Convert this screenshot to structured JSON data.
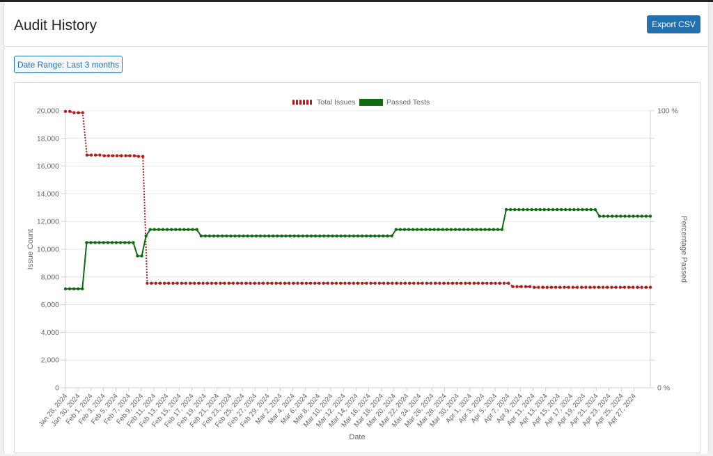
{
  "header": {
    "title": "Audit History",
    "export_label": "Export CSV"
  },
  "filters": {
    "date_range_label": "Date Range: Last 3 months"
  },
  "colors": {
    "primary_button": "#2271b1",
    "total_issues": "#b31b1b",
    "passed_tests": "#0f6b0f"
  },
  "chart_data": {
    "type": "line",
    "xlabel": "Date",
    "ylabel": "Issue Count",
    "y2label": "Percentage Passed",
    "ylim": [
      0,
      20000
    ],
    "y2lim": [
      0,
      100
    ],
    "y_ticks": [
      "0",
      "2,000",
      "4,000",
      "6,000",
      "8,000",
      "10,000",
      "12,000",
      "14,000",
      "16,000",
      "18,000",
      "20,000"
    ],
    "y2_ticks": [
      "0 %",
      "100 %"
    ],
    "legend_position": "top-center",
    "x_tick_labels": [
      "Jan 28, 2024",
      "Jan 30, 2024",
      "Feb 1, 2024",
      "Feb 3, 2024",
      "Feb 5, 2024",
      "Feb 7, 2024",
      "Feb 9, 2024",
      "Feb 11, 2024",
      "Feb 13, 2024",
      "Feb 15, 2024",
      "Feb 17, 2024",
      "Feb 19, 2024",
      "Feb 21, 2024",
      "Feb 23, 2024",
      "Feb 25, 2024",
      "Feb 27, 2024",
      "Feb 29, 2024",
      "Mar 2, 2024",
      "Mar 4, 2024",
      "Mar 6, 2024",
      "Mar 8, 2024",
      "Mar 10, 2024",
      "Mar 12, 2024",
      "Mar 14, 2024",
      "Mar 16, 2024",
      "Mar 18, 2024",
      "Mar 20, 2024",
      "Mar 22, 2024",
      "Mar 24, 2024",
      "Mar 26, 2024",
      "Mar 28, 2024",
      "Mar 30, 2024",
      "Apr 1, 2024",
      "Apr 3, 2024",
      "Apr 5, 2024",
      "Apr 7, 2024",
      "Apr 9, 2024",
      "Apr 11, 2024",
      "Apr 13, 2024",
      "Apr 15, 2024",
      "Apr 17, 2024",
      "Apr 19, 2024",
      "Apr 21, 2024",
      "Apr 23, 2024",
      "Apr 25, 2024",
      "Apr 27, 2024"
    ],
    "series": [
      {
        "name": "Total Issues",
        "axis": "left",
        "style": "dotted",
        "values": [
          19950,
          19950,
          19850,
          19850,
          19850,
          16800,
          16800,
          16800,
          16800,
          16750,
          16750,
          16750,
          16750,
          16750,
          16750,
          16750,
          16750,
          16700,
          16700,
          7550,
          7550,
          7550,
          7550,
          7550,
          7550,
          7550,
          7550,
          7550,
          7550,
          7550,
          7550,
          7550,
          7550,
          7550,
          7550,
          7550,
          7550,
          7550,
          7550,
          7550,
          7550,
          7550,
          7550,
          7550,
          7550,
          7550,
          7550,
          7550,
          7550,
          7550,
          7550,
          7550,
          7550,
          7550,
          7550,
          7550,
          7550,
          7550,
          7550,
          7550,
          7550,
          7550,
          7550,
          7550,
          7550,
          7550,
          7550,
          7550,
          7550,
          7550,
          7550,
          7550,
          7550,
          7550,
          7550,
          7550,
          7550,
          7550,
          7550,
          7550,
          7550,
          7550,
          7550,
          7550,
          7550,
          7550,
          7550,
          7550,
          7550,
          7550,
          7550,
          7550,
          7550,
          7550,
          7550,
          7550,
          7550,
          7550,
          7550,
          7550,
          7550,
          7550,
          7550,
          7550,
          7300,
          7300,
          7300,
          7300,
          7300,
          7250,
          7250,
          7250,
          7250,
          7250,
          7250,
          7250,
          7250,
          7250,
          7250,
          7250,
          7250,
          7250,
          7250,
          7250,
          7250,
          7250,
          7250,
          7250,
          7250,
          7250,
          7250,
          7250,
          7250,
          7250,
          7250,
          7250,
          7250
        ]
      },
      {
        "name": "Passed Tests",
        "axis": "right",
        "style": "solid",
        "values": [
          35.7,
          35.7,
          35.7,
          35.7,
          35.7,
          52.4,
          52.4,
          52.4,
          52.4,
          52.4,
          52.4,
          52.4,
          52.4,
          52.4,
          52.4,
          52.4,
          52.4,
          47.6,
          47.6,
          54.8,
          57.1,
          57.1,
          57.1,
          57.1,
          57.1,
          57.1,
          57.1,
          57.1,
          57.1,
          57.1,
          57.1,
          57.1,
          54.8,
          54.8,
          54.8,
          54.8,
          54.8,
          54.8,
          54.8,
          54.8,
          54.8,
          54.8,
          54.8,
          54.8,
          54.8,
          54.8,
          54.8,
          54.8,
          54.8,
          54.8,
          54.8,
          54.8,
          54.8,
          54.8,
          54.8,
          54.8,
          54.8,
          54.8,
          54.8,
          54.8,
          54.8,
          54.8,
          54.8,
          54.8,
          54.8,
          54.8,
          54.8,
          54.8,
          54.8,
          54.8,
          54.8,
          54.8,
          54.8,
          54.8,
          54.8,
          54.8,
          54.8,
          54.8,
          57.1,
          57.1,
          57.1,
          57.1,
          57.1,
          57.1,
          57.1,
          57.1,
          57.1,
          57.1,
          57.1,
          57.1,
          57.1,
          57.1,
          57.1,
          57.1,
          57.1,
          57.1,
          57.1,
          57.1,
          57.1,
          57.1,
          57.1,
          57.1,
          57.1,
          57.1,
          64.3,
          64.3,
          64.3,
          64.3,
          64.3,
          64.3,
          64.3,
          64.3,
          64.3,
          64.3,
          64.3,
          64.3,
          64.3,
          64.3,
          64.3,
          64.3,
          64.3,
          64.3,
          64.3,
          64.3,
          64.3,
          64.3,
          61.9,
          61.9,
          61.9,
          61.9,
          61.9,
          61.9,
          61.9,
          61.9,
          61.9,
          61.9,
          61.9,
          61.9,
          61.9
        ]
      }
    ]
  }
}
